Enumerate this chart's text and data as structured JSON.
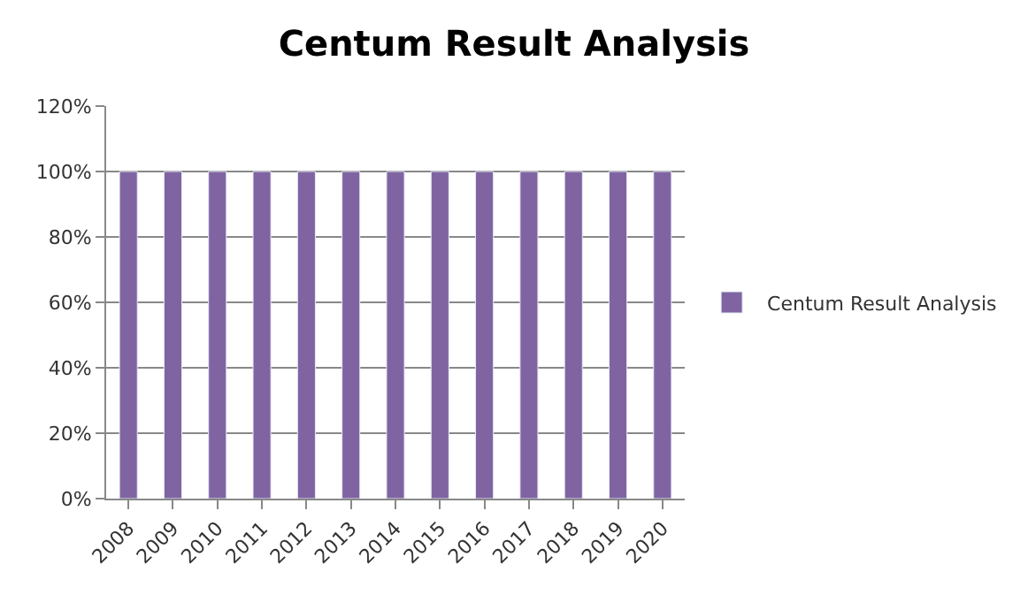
{
  "chart_data": {
    "type": "bar",
    "title": "Centum Result Analysis",
    "categories": [
      "2008",
      "2009",
      "2010",
      "2011",
      "2012",
      "2013",
      "2014",
      "2015",
      "2016",
      "2017",
      "2018",
      "2019",
      "2020"
    ],
    "series": [
      {
        "name": "Centum Result Analysis",
        "color": "#8064a2",
        "values": [
          100,
          100,
          100,
          100,
          100,
          100,
          100,
          100,
          100,
          100,
          100,
          100,
          100
        ]
      }
    ],
    "ylim": [
      0,
      120
    ],
    "yticks": [
      {
        "value": 0,
        "label": "0%"
      },
      {
        "value": 20,
        "label": "20%"
      },
      {
        "value": 40,
        "label": "40%"
      },
      {
        "value": 60,
        "label": "60%"
      },
      {
        "value": 80,
        "label": "80%"
      },
      {
        "value": 100,
        "label": "100%"
      },
      {
        "value": 120,
        "label": "120%"
      }
    ],
    "grid": "y",
    "legend": "right"
  }
}
